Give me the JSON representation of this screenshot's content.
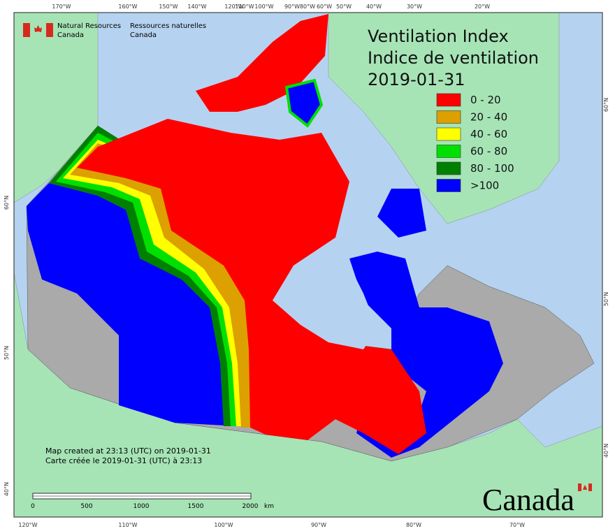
{
  "title": [
    "Ventilation Index",
    "Indice de ventilation",
    "2019-01-31"
  ],
  "legend": [
    {
      "label": "0 - 20",
      "color": "#ff0000"
    },
    {
      "label": "20 - 40",
      "color": "#dca000"
    },
    {
      "label": "40 - 60",
      "color": "#ffff00"
    },
    {
      "label": "60 - 80",
      "color": "#00e000"
    },
    {
      "label": "80 - 100",
      "color": "#008000"
    },
    {
      "label": ">100",
      "color": "#0000ff"
    }
  ],
  "agency": {
    "en": [
      "Natural Resources",
      "Canada"
    ],
    "fr": [
      "Ressources naturelles",
      "Canada"
    ]
  },
  "notes": [
    "Map created at 23:13 (UTC) on 2019-01-31",
    "Carte créée le 2019-01-31 (UTC) à 23:13"
  ],
  "scale_bar": {
    "labels": [
      "0",
      "500",
      "1000",
      "1500",
      "2000"
    ],
    "unit": "km"
  },
  "wordmark": "Canada",
  "graticule": {
    "top": [
      "170°W",
      "160°W",
      "150°W",
      "140°W",
      "120°W",
      "110°W",
      "100°W",
      "90°W",
      "80°W",
      "60°W",
      "50°W",
      "40°W",
      "30°W",
      "20°W"
    ],
    "bottom": [
      "120°W",
      "110°W",
      "100°W",
      "90°W",
      "80°W",
      "70°W"
    ],
    "left": [
      "60°N",
      "50°N",
      "40°N"
    ],
    "right": [
      "60°N",
      "50°N",
      "40°N"
    ]
  }
}
